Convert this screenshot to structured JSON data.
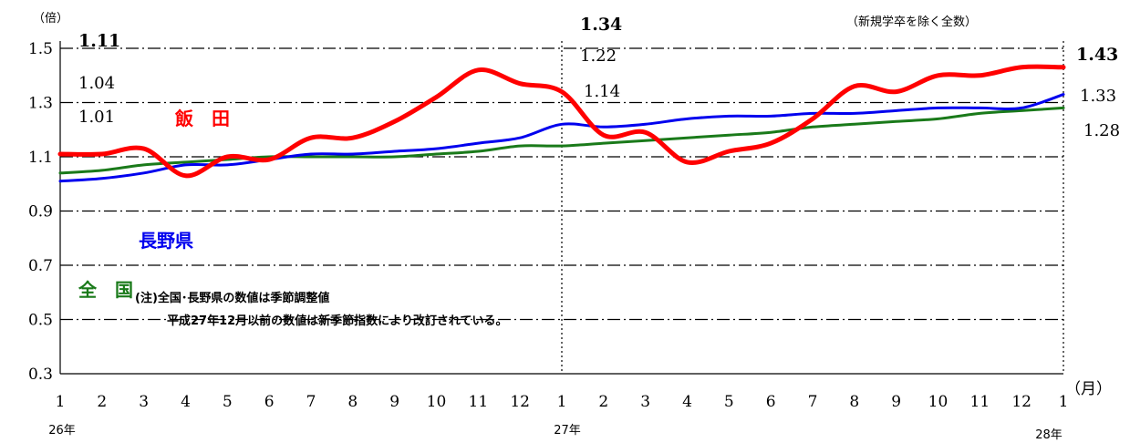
{
  "chart_data": {
    "type": "line",
    "y_unit": "（倍）",
    "note_top_right": "（新規学卒を除く全数）",
    "x_unit": "（月）",
    "ylim": [
      0.3,
      1.5
    ],
    "y_ticks": [
      "1.5",
      "1.3",
      "1.1",
      "0.9",
      "0.7",
      "0.5",
      "0.3"
    ],
    "categories": [
      "1",
      "2",
      "3",
      "4",
      "5",
      "6",
      "7",
      "8",
      "9",
      "10",
      "11",
      "12",
      "1",
      "2",
      "3",
      "4",
      "5",
      "6",
      "7",
      "8",
      "9",
      "10",
      "11",
      "12",
      "1"
    ],
    "year_labels": [
      "26年",
      "27年",
      "28年"
    ],
    "grid": true,
    "divider_at_index": 12,
    "series": [
      {
        "name": "飯　田",
        "color": "#ff0000",
        "values": [
          1.11,
          1.11,
          1.13,
          1.03,
          1.1,
          1.09,
          1.17,
          1.17,
          1.23,
          1.32,
          1.42,
          1.37,
          1.34,
          1.18,
          1.19,
          1.08,
          1.12,
          1.15,
          1.24,
          1.36,
          1.34,
          1.4,
          1.4,
          1.43,
          1.43
        ]
      },
      {
        "name": "長野県",
        "color": "#0000ee",
        "values": [
          1.01,
          1.02,
          1.04,
          1.07,
          1.07,
          1.09,
          1.11,
          1.11,
          1.12,
          1.13,
          1.15,
          1.17,
          1.22,
          1.21,
          1.22,
          1.24,
          1.25,
          1.25,
          1.26,
          1.26,
          1.27,
          1.28,
          1.28,
          1.28,
          1.33
        ]
      },
      {
        "name": "全　国",
        "color": "#1a7a1a",
        "values": [
          1.04,
          1.05,
          1.07,
          1.08,
          1.09,
          1.1,
          1.1,
          1.1,
          1.1,
          1.11,
          1.12,
          1.14,
          1.14,
          1.15,
          1.16,
          1.17,
          1.18,
          1.19,
          1.21,
          1.22,
          1.23,
          1.24,
          1.26,
          1.27,
          1.28
        ]
      }
    ],
    "value_labels": [
      {
        "text": "1.11",
        "index": 0,
        "bold": true
      },
      {
        "text": "1.04",
        "index": 0,
        "bold": false
      },
      {
        "text": "1.01",
        "index": 0,
        "bold": false
      },
      {
        "text": "1.34",
        "index": 12,
        "bold": true
      },
      {
        "text": "1.22",
        "index": 12,
        "bold": false
      },
      {
        "text": "1.14",
        "index": 12,
        "bold": false
      },
      {
        "text": "1.43",
        "index": 24,
        "bold": true
      },
      {
        "text": "1.33",
        "index": 24,
        "bold": false
      },
      {
        "text": "1.28",
        "index": 24,
        "bold": false
      }
    ],
    "notes": [
      "(注)全国･長野県の数値は季節調整値",
      "平成27年12月以前の数値は新季節指数により改訂されている。"
    ]
  }
}
